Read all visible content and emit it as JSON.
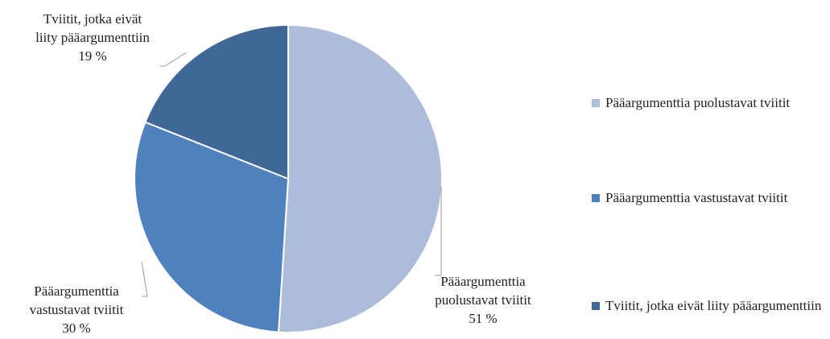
{
  "chart_data": {
    "type": "pie",
    "categories": [
      "Pääargumenttia puolustavat tviitit",
      "Pääargumenttia vastustavat tviitit",
      "Tviitit, jotka eivät liity pääargumenttiin"
    ],
    "values": [
      51,
      30,
      19
    ],
    "value_labels": [
      "51 %",
      "30 %",
      "19 %"
    ],
    "colors": [
      "#adbcd9",
      "#4f81bd",
      "#3f6797"
    ],
    "legend": "right"
  }
}
